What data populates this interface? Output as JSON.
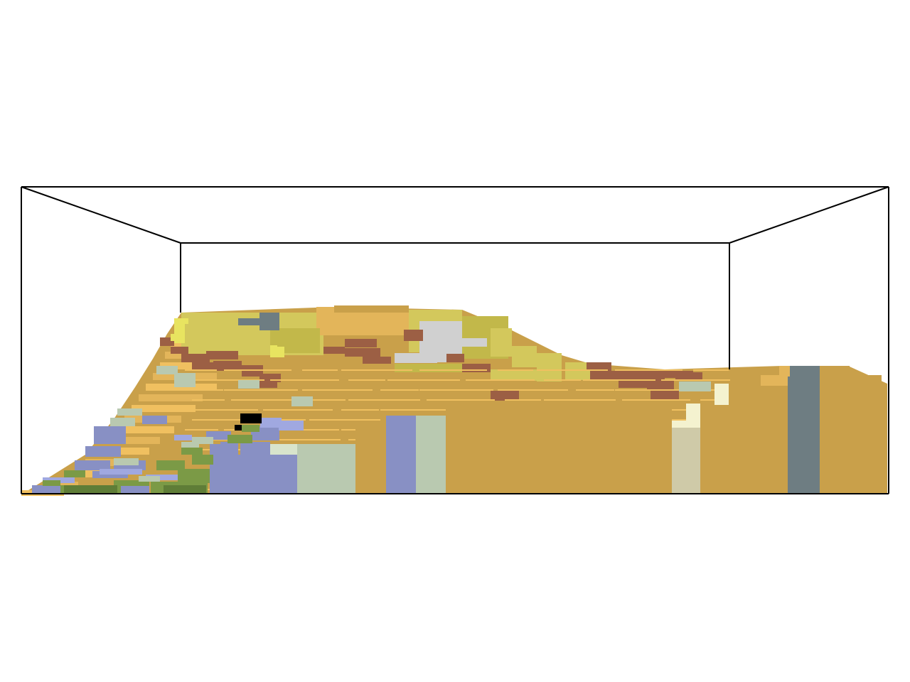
{
  "scene": {
    "view": "voxel-terrain-3d",
    "background": "#ffffff",
    "frame_color": "#000000",
    "palette": {
      "sand": "#c9a04a",
      "sand_light": "#e3b55a",
      "sand_top": "#f0c060",
      "brown": "#9c5f44",
      "olive_top": "#d3c85c",
      "olive": "#c2b84a",
      "yellow": "#e8e460",
      "gray_light": "#d0d0d0",
      "slate": "#6e7d82",
      "periwinkle": "#8890c4",
      "periwinkle_top": "#a0a8e0",
      "sage": "#b9c9b0",
      "sage_top": "#d8e4cc",
      "green": "#7b9a46",
      "green_dark": "#5f7d37",
      "cream": "#f4f2cf",
      "beige": "#cfcaa8",
      "black": "#000000"
    }
  }
}
